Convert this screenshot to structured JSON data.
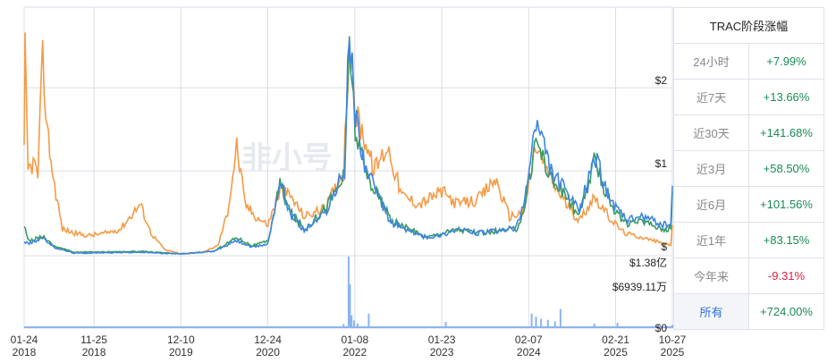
{
  "table": {
    "title": "TRAC阶段涨幅",
    "rows": [
      {
        "label": "24小时",
        "value": "+7.99%",
        "dir": "up"
      },
      {
        "label": "近7天",
        "value": "+13.66%",
        "dir": "up"
      },
      {
        "label": "近30天",
        "value": "+141.68%",
        "dir": "up"
      },
      {
        "label": "近3月",
        "value": "+58.50%",
        "dir": "up"
      },
      {
        "label": "近6月",
        "value": "+101.56%",
        "dir": "up"
      },
      {
        "label": "近1年",
        "value": "+83.15%",
        "dir": "up"
      },
      {
        "label": "今年来",
        "value": "-9.31%",
        "dir": "down"
      },
      {
        "label": "所有",
        "value": "+724.00%",
        "dir": "up",
        "active": true
      }
    ]
  },
  "watermark": "非小号",
  "chart_data": {
    "type": "line",
    "x_ticks": [
      [
        "2018-01-24",
        "01-24",
        "2018"
      ],
      [
        "2018-11-25",
        "11-25",
        "2018"
      ],
      [
        "2019-12-10",
        "12-10",
        "2019"
      ],
      [
        "2020-12-24",
        "12-24",
        "2020"
      ],
      [
        "2022-01-08",
        "01-08",
        "2022"
      ],
      [
        "2023-01-23",
        "01-23",
        "2023"
      ],
      [
        "2024-02-07",
        "02-07",
        "2024"
      ],
      [
        "2025-02-21",
        "02-21",
        "2025"
      ],
      [
        "2025-10-27",
        "10-27",
        "2025"
      ]
    ],
    "xlim": [
      "2018-01-24",
      "2025-10-27"
    ],
    "price_axis": {
      "ticks": [
        {
          "v": 2,
          "label": "$2"
        },
        {
          "v": 1,
          "label": "$1"
        },
        {
          "v": 0,
          "label": "$"
        }
      ],
      "ylim": [
        0,
        2.97
      ]
    },
    "volume_axis": {
      "ticks": [
        {
          "v": 13878,
          "label": "$1.38亿"
        },
        {
          "v": 6939.11,
          "label": "$6939.11万"
        },
        {
          "v": 0,
          "label": "$0"
        }
      ],
      "ylim": [
        0,
        13878
      ],
      "unit": "万"
    },
    "colors": {
      "orange": "#f59a45",
      "green": "#3a9a5c",
      "blue": "#3d86e0",
      "volume": "#8ab4f0",
      "grid": "#dcdce8"
    },
    "series": [
      {
        "key": "orange",
        "points": [
          [
            "2018-01-24",
            1.2
          ],
          [
            "2018-01-28",
            2.4
          ],
          [
            "2018-02-10",
            1.0
          ],
          [
            "2018-03-05",
            1.1
          ],
          [
            "2018-03-25",
            0.95
          ],
          [
            "2018-04-15",
            2.35
          ],
          [
            "2018-05-05",
            1.5
          ],
          [
            "2018-06-01",
            0.9
          ],
          [
            "2018-07-10",
            0.3
          ],
          [
            "2018-09-01",
            0.25
          ],
          [
            "2018-11-01",
            0.22
          ],
          [
            "2019-01-15",
            0.25
          ],
          [
            "2019-03-20",
            0.3
          ],
          [
            "2019-06-15",
            0.6
          ],
          [
            "2019-08-01",
            0.25
          ],
          [
            "2019-10-01",
            0.05
          ],
          [
            "2019-12-10",
            0.0
          ],
          [
            "2020-03-15",
            0.02
          ],
          [
            "2020-05-20",
            0.1
          ],
          [
            "2020-07-01",
            0.5
          ],
          [
            "2020-08-10",
            1.3
          ],
          [
            "2020-09-15",
            0.6
          ],
          [
            "2020-11-01",
            0.45
          ],
          [
            "2020-12-24",
            0.35
          ],
          [
            "2021-02-15",
            0.75
          ],
          [
            "2021-04-01",
            0.7
          ],
          [
            "2021-06-01",
            0.45
          ],
          [
            "2021-09-01",
            0.55
          ],
          [
            "2021-11-20",
            1.0
          ],
          [
            "2021-12-15",
            2.6
          ],
          [
            "2022-01-10",
            1.7
          ],
          [
            "2022-02-20",
            1.4
          ],
          [
            "2022-04-01",
            1.0
          ],
          [
            "2022-06-01",
            1.3
          ],
          [
            "2022-08-01",
            0.7
          ],
          [
            "2022-10-20",
            0.6
          ],
          [
            "2023-01-23",
            0.75
          ],
          [
            "2023-04-01",
            0.6
          ],
          [
            "2023-07-01",
            0.65
          ],
          [
            "2023-09-15",
            0.9
          ],
          [
            "2023-11-15",
            0.45
          ],
          [
            "2024-01-15",
            0.5
          ],
          [
            "2024-03-10",
            1.3
          ],
          [
            "2024-05-15",
            0.9
          ],
          [
            "2024-07-20",
            0.6
          ],
          [
            "2024-09-15",
            0.4
          ],
          [
            "2024-11-20",
            0.7
          ],
          [
            "2025-01-20",
            0.45
          ],
          [
            "2025-04-01",
            0.25
          ],
          [
            "2025-06-15",
            0.2
          ],
          [
            "2025-08-20",
            0.15
          ],
          [
            "2025-10-20",
            0.1
          ],
          [
            "2025-10-27",
            0.35
          ]
        ]
      },
      {
        "key": "green",
        "points": [
          [
            "2018-01-24",
            0.32
          ],
          [
            "2018-02-15",
            0.15
          ],
          [
            "2018-04-15",
            0.22
          ],
          [
            "2018-06-01",
            0.1
          ],
          [
            "2018-09-01",
            0.02
          ],
          [
            "2019-06-15",
            0.03
          ],
          [
            "2019-12-10",
            0.0
          ],
          [
            "2020-05-01",
            0.03
          ],
          [
            "2020-08-10",
            0.2
          ],
          [
            "2020-10-15",
            0.1
          ],
          [
            "2020-12-24",
            0.15
          ],
          [
            "2021-02-15",
            0.85
          ],
          [
            "2021-04-01",
            0.5
          ],
          [
            "2021-06-01",
            0.3
          ],
          [
            "2021-09-01",
            0.55
          ],
          [
            "2021-11-25",
            0.95
          ],
          [
            "2021-12-15",
            2.6
          ],
          [
            "2022-01-10",
            1.5
          ],
          [
            "2022-02-20",
            1.0
          ],
          [
            "2022-04-01",
            0.8
          ],
          [
            "2022-06-15",
            0.4
          ],
          [
            "2022-09-01",
            0.3
          ],
          [
            "2022-11-15",
            0.2
          ],
          [
            "2023-01-23",
            0.25
          ],
          [
            "2023-04-01",
            0.3
          ],
          [
            "2023-07-01",
            0.25
          ],
          [
            "2023-10-15",
            0.28
          ],
          [
            "2023-12-15",
            0.3
          ],
          [
            "2024-01-15",
            0.5
          ],
          [
            "2024-03-10",
            1.4
          ],
          [
            "2024-05-15",
            0.9
          ],
          [
            "2024-07-20",
            0.7
          ],
          [
            "2024-09-15",
            0.45
          ],
          [
            "2024-11-20",
            1.1
          ],
          [
            "2025-01-01",
            0.8
          ],
          [
            "2025-02-21",
            0.5
          ],
          [
            "2025-04-15",
            0.35
          ],
          [
            "2025-06-20",
            0.4
          ],
          [
            "2025-09-15",
            0.3
          ],
          [
            "2025-10-20",
            0.3
          ],
          [
            "2025-10-27",
            0.75
          ]
        ]
      },
      {
        "key": "blue",
        "points": [
          [
            "2018-01-24",
            0.15
          ],
          [
            "2018-02-15",
            0.12
          ],
          [
            "2018-04-15",
            0.2
          ],
          [
            "2018-06-01",
            0.08
          ],
          [
            "2018-09-01",
            0.01
          ],
          [
            "2019-06-15",
            0.02
          ],
          [
            "2019-12-10",
            0.0
          ],
          [
            "2020-05-01",
            0.03
          ],
          [
            "2020-08-10",
            0.16
          ],
          [
            "2020-10-15",
            0.08
          ],
          [
            "2020-12-24",
            0.12
          ],
          [
            "2021-02-15",
            0.9
          ],
          [
            "2021-04-01",
            0.5
          ],
          [
            "2021-06-01",
            0.28
          ],
          [
            "2021-09-01",
            0.5
          ],
          [
            "2021-11-25",
            1.0
          ],
          [
            "2021-12-15",
            2.73
          ],
          [
            "2022-01-10",
            1.7
          ],
          [
            "2022-02-20",
            1.1
          ],
          [
            "2022-04-01",
            0.8
          ],
          [
            "2022-06-15",
            0.38
          ],
          [
            "2022-09-01",
            0.28
          ],
          [
            "2022-11-15",
            0.2
          ],
          [
            "2023-01-23",
            0.23
          ],
          [
            "2023-04-01",
            0.3
          ],
          [
            "2023-07-01",
            0.25
          ],
          [
            "2023-10-15",
            0.28
          ],
          [
            "2023-12-15",
            0.32
          ],
          [
            "2024-01-15",
            0.55
          ],
          [
            "2024-03-10",
            1.6
          ],
          [
            "2024-05-15",
            1.0
          ],
          [
            "2024-07-20",
            0.75
          ],
          [
            "2024-09-15",
            0.5
          ],
          [
            "2024-11-20",
            1.2
          ],
          [
            "2025-01-01",
            0.85
          ],
          [
            "2025-02-21",
            0.55
          ],
          [
            "2025-04-15",
            0.4
          ],
          [
            "2025-06-20",
            0.45
          ],
          [
            "2025-09-15",
            0.35
          ],
          [
            "2025-10-20",
            0.35
          ],
          [
            "2025-10-27",
            0.82
          ]
        ]
      }
    ],
    "volume": [
      [
        "2018-01-24",
        80
      ],
      [
        "2019-06-01",
        40
      ],
      [
        "2020-12-01",
        200
      ],
      [
        "2021-06-01",
        300
      ],
      [
        "2021-11-20",
        800
      ],
      [
        "2021-12-12",
        13878
      ],
      [
        "2021-12-18",
        8500
      ],
      [
        "2021-12-25",
        2500
      ],
      [
        "2022-01-05",
        1500
      ],
      [
        "2022-01-20",
        900
      ],
      [
        "2022-03-10",
        2800
      ],
      [
        "2022-06-01",
        300
      ],
      [
        "2022-10-01",
        200
      ],
      [
        "2023-02-10",
        1200
      ],
      [
        "2023-06-01",
        200
      ],
      [
        "2023-12-01",
        300
      ],
      [
        "2024-02-20",
        2800
      ],
      [
        "2024-03-10",
        2200
      ],
      [
        "2024-04-01",
        1800
      ],
      [
        "2024-05-01",
        1600
      ],
      [
        "2024-06-01",
        1300
      ],
      [
        "2024-06-25",
        3700
      ],
      [
        "2024-07-10",
        300
      ],
      [
        "2024-11-20",
        900
      ],
      [
        "2025-03-01",
        1000
      ],
      [
        "2025-06-01",
        300
      ],
      [
        "2025-10-27",
        600
      ]
    ]
  }
}
